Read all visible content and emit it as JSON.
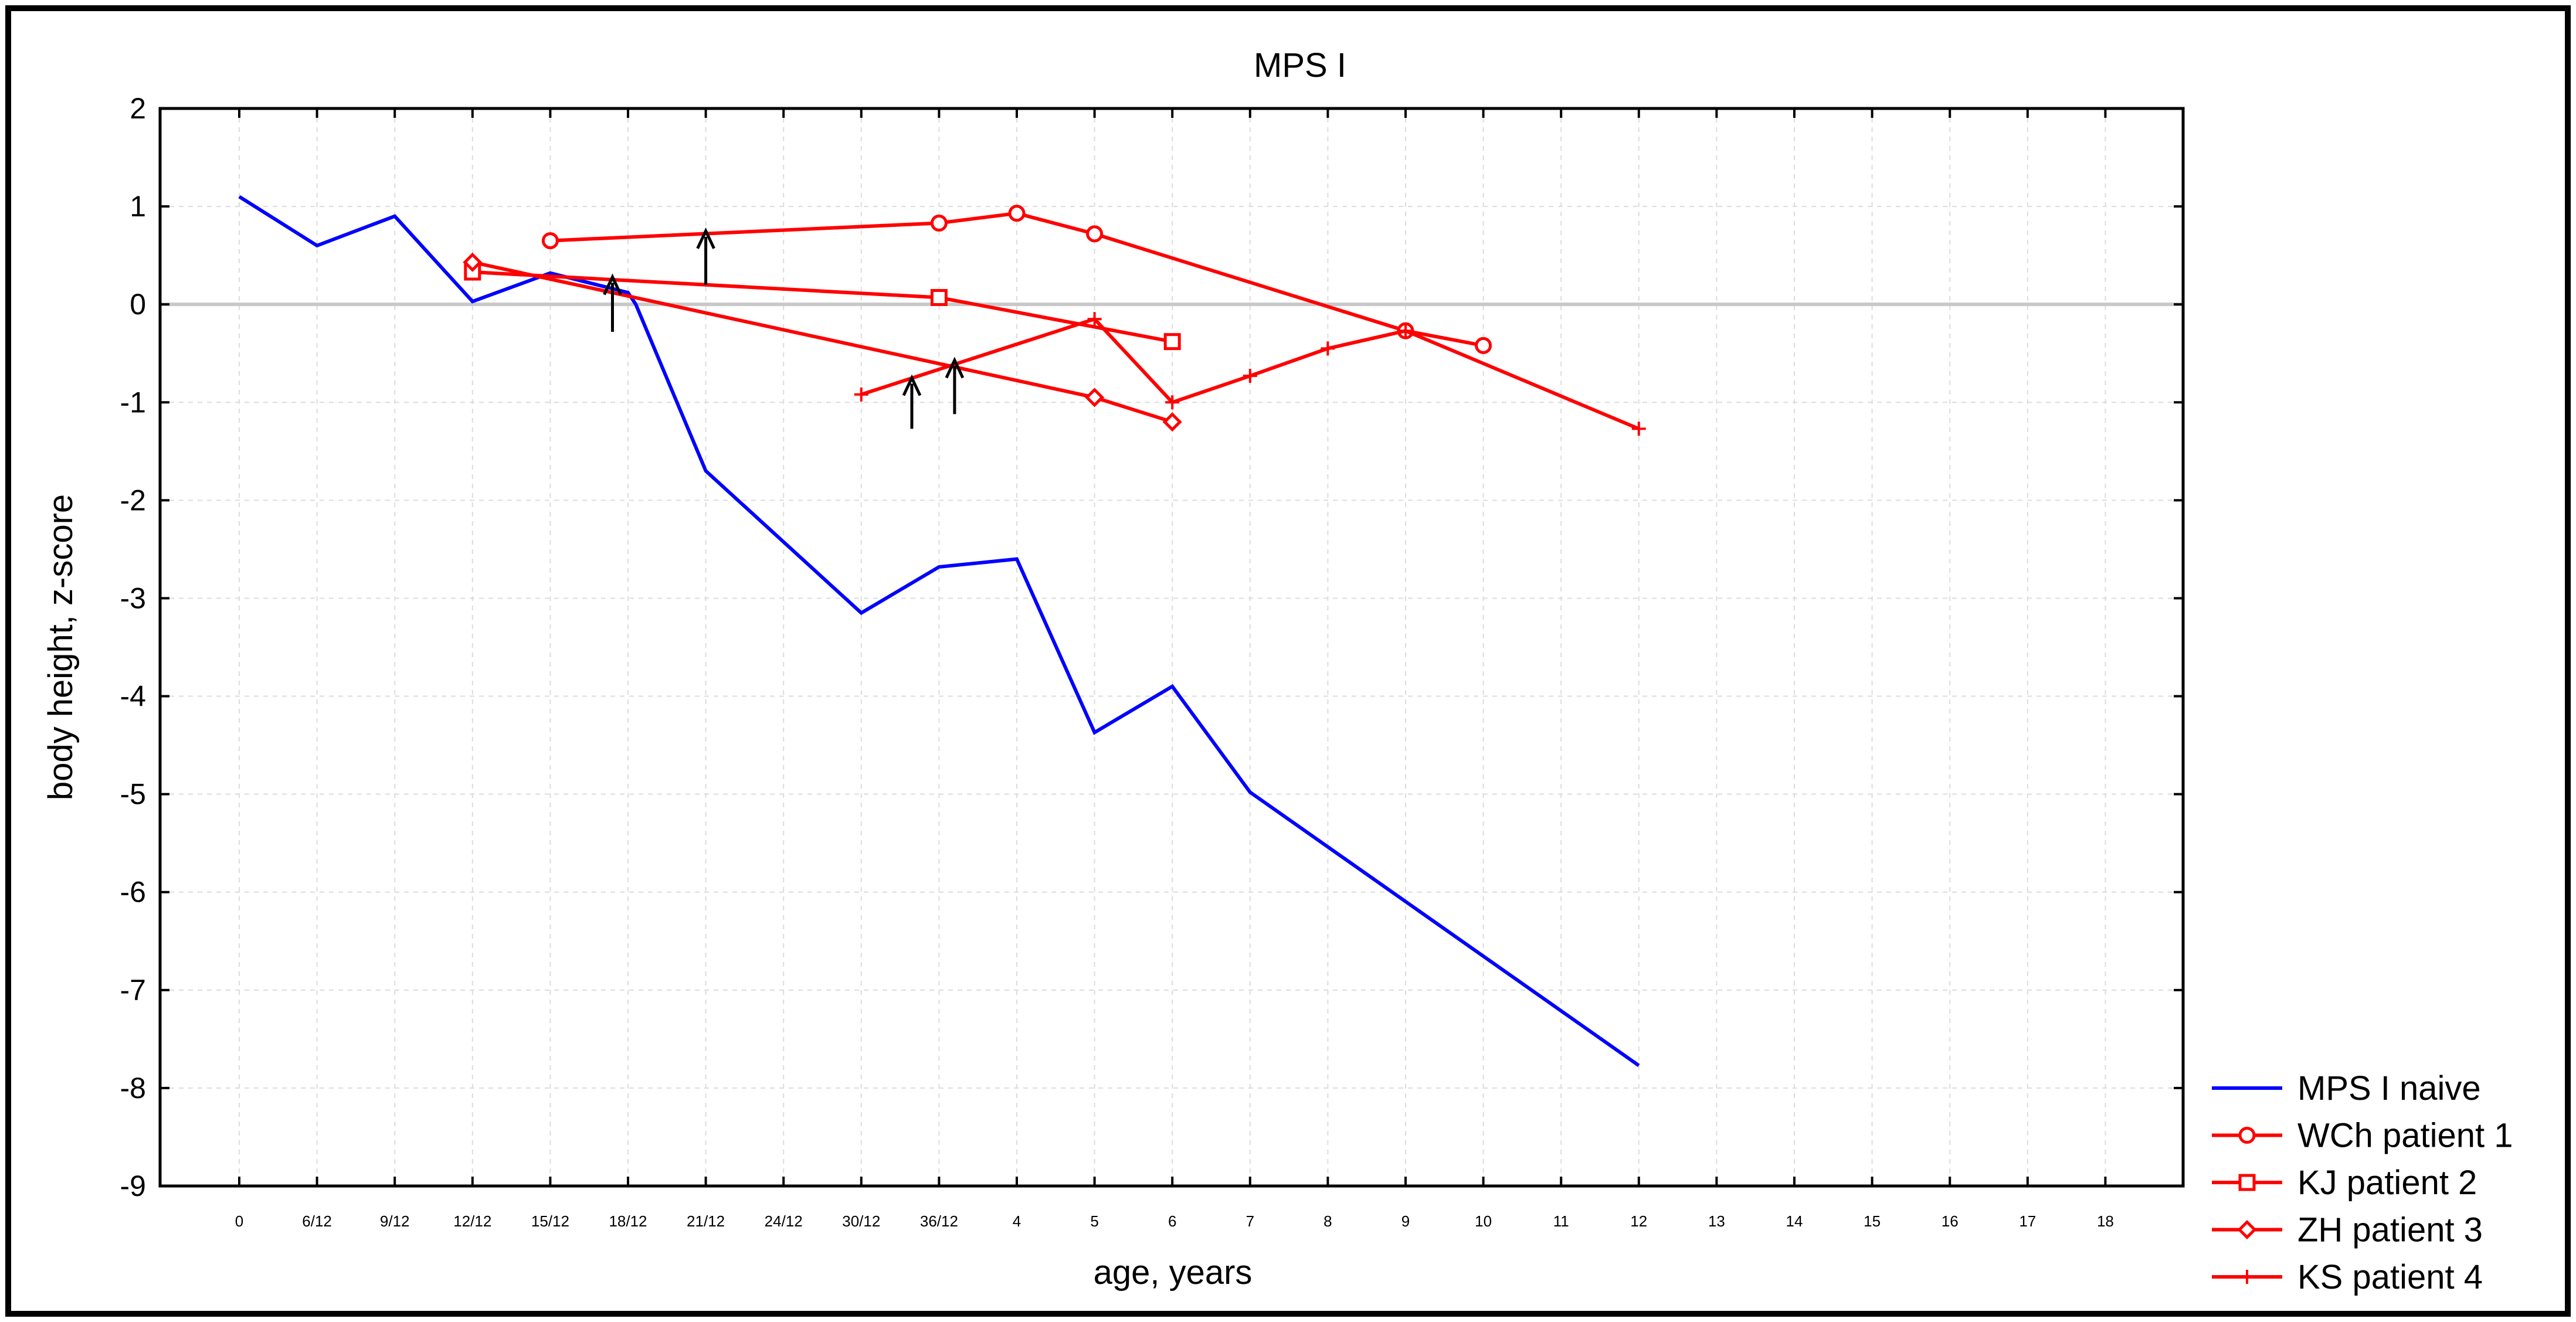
{
  "chart_data": {
    "type": "line",
    "title": "MPS I",
    "xlabel": "age, years",
    "ylabel": "body height, z-score",
    "ylim": [
      -9,
      2
    ],
    "yticks": [
      2,
      1,
      0,
      -1,
      -2,
      -3,
      -4,
      -5,
      -6,
      -7,
      -8,
      -9
    ],
    "grid": true,
    "legend_position": "bottom-right",
    "categories": [
      "0",
      "6/12",
      "9/12",
      "12/12",
      "15/12",
      "18/12",
      "21/12",
      "24/12",
      "30/12",
      "36/12",
      "4",
      "5",
      "6",
      "7",
      "8",
      "9",
      "10",
      "11",
      "12",
      "13",
      "14",
      "15",
      "16",
      "17",
      "18"
    ],
    "reference_line": {
      "y": 0,
      "color": "#c8c8c8"
    },
    "series": [
      {
        "name": "MPS I naive",
        "color": "#0000ff",
        "marker": "none",
        "points": [
          [
            0,
            1.1
          ],
          [
            1,
            0.6
          ],
          [
            2,
            0.9
          ],
          [
            3,
            0.03
          ],
          [
            4,
            0.32
          ],
          [
            5,
            0.12
          ],
          [
            5.1,
            0.0
          ],
          [
            6,
            -1.7
          ],
          [
            8,
            -3.15
          ],
          [
            9,
            -2.68
          ],
          [
            10,
            -2.6
          ],
          [
            11,
            -4.37
          ],
          [
            12,
            -3.9
          ],
          [
            13,
            -4.98
          ],
          [
            18,
            -7.77
          ]
        ]
      },
      {
        "name": "WCh patient 1",
        "color": "#ff0000",
        "marker": "circle",
        "points": [
          [
            4,
            0.65
          ],
          [
            9,
            0.83
          ],
          [
            10,
            0.93
          ],
          [
            11,
            0.72
          ],
          [
            15,
            -0.27
          ],
          [
            16,
            -0.42
          ]
        ]
      },
      {
        "name": "KJ patient 2",
        "color": "#ff0000",
        "marker": "square",
        "points": [
          [
            3,
            0.33
          ],
          [
            9,
            0.07
          ],
          [
            12,
            -0.38
          ]
        ]
      },
      {
        "name": "ZH patient 3",
        "color": "#ff0000",
        "marker": "diamond",
        "points": [
          [
            3,
            0.43
          ],
          [
            11,
            -0.95
          ],
          [
            12,
            -1.2
          ]
        ]
      },
      {
        "name": "KS patient 4",
        "color": "#ff0000",
        "marker": "plus",
        "points": [
          [
            8,
            -0.92
          ],
          [
            11,
            -0.15
          ],
          [
            12,
            -1.0
          ],
          [
            13,
            -0.73
          ],
          [
            14,
            -0.45
          ],
          [
            15,
            -0.27
          ],
          [
            18,
            -1.27
          ]
        ]
      }
    ],
    "annotations": [
      {
        "type": "arrow",
        "x": 6,
        "y_tail": 0.2,
        "y_head": 0.75
      },
      {
        "type": "arrow",
        "x": 4.8,
        "y_tail": -0.28,
        "y_head": 0.28
      },
      {
        "type": "arrow",
        "x": 8.65,
        "y_tail": -1.27,
        "y_head": -0.75
      },
      {
        "type": "arrow",
        "x": 9.2,
        "y_tail": -1.12,
        "y_head": -0.57
      }
    ]
  }
}
